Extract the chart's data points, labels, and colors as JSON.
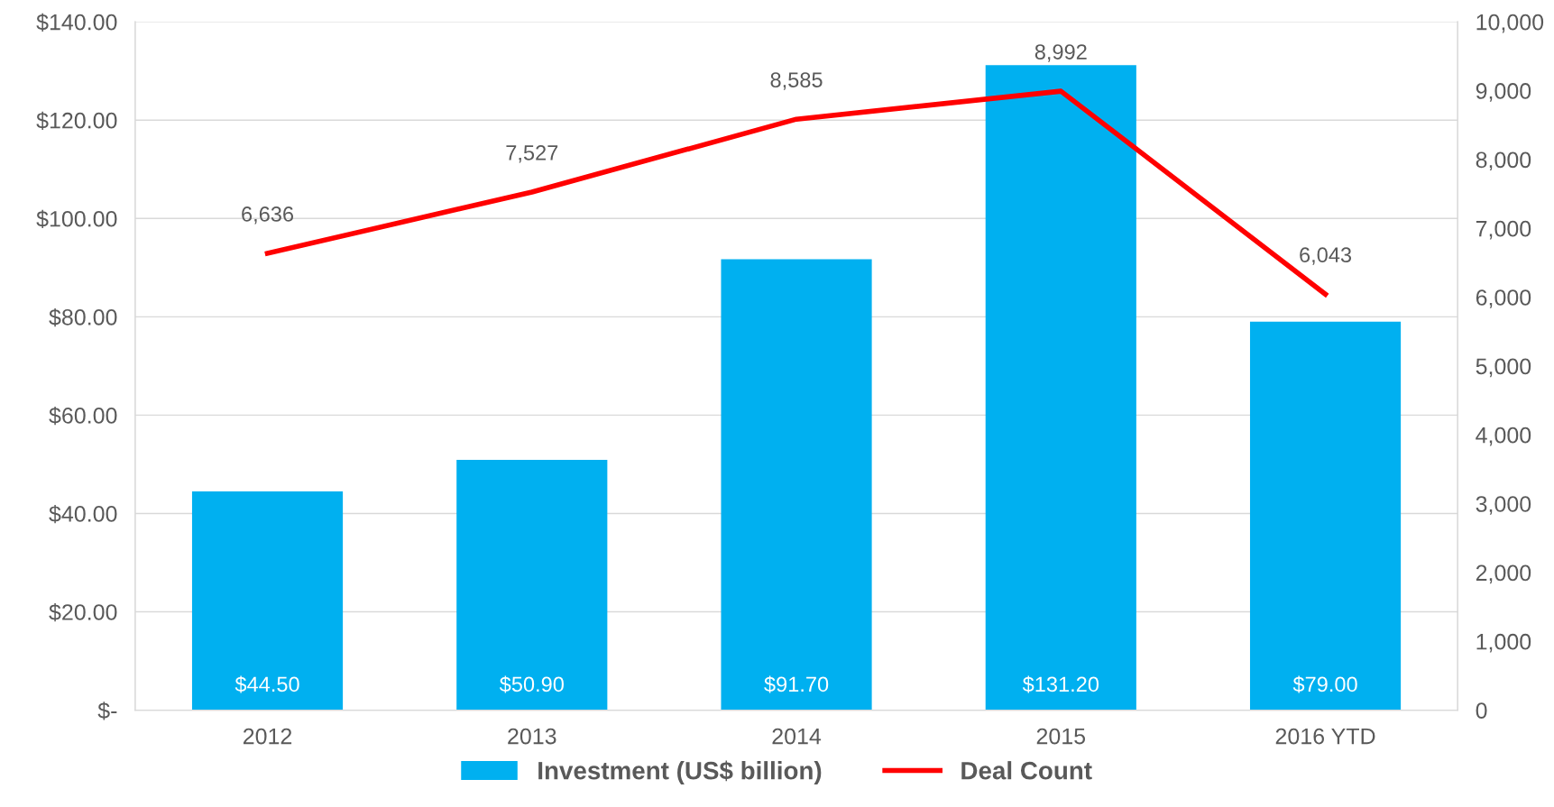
{
  "chart_data": {
    "type": "bar",
    "categories": [
      "2012",
      "2013",
      "2014",
      "2015",
      "2016 YTD"
    ],
    "series": [
      {
        "name": "Investment (US$ billion)",
        "color": "#00b0f0",
        "values": [
          44.5,
          50.9,
          91.7,
          131.2,
          79.0
        ],
        "value_labels": [
          "$44.50",
          "$50.90",
          "$91.70",
          "$131.20",
          "$79.00"
        ]
      },
      {
        "name": "Deal Count",
        "type": "line",
        "axis": "y2",
        "color": "#ff0000",
        "values": [
          6636,
          7527,
          8585,
          8992,
          6043
        ],
        "value_labels": [
          "6,636",
          "7,527",
          "8,585",
          "8,992",
          "6,043"
        ]
      }
    ],
    "ylim": [
      0,
      140
    ],
    "yticks": [
      {
        "value": 0,
        "label": "$-"
      },
      {
        "value": 20,
        "label": "$20.00"
      },
      {
        "value": 40,
        "label": "$40.00"
      },
      {
        "value": 60,
        "label": "$60.00"
      },
      {
        "value": 80,
        "label": "$80.00"
      },
      {
        "value": 100,
        "label": "$100.00"
      },
      {
        "value": 120,
        "label": "$120.00"
      },
      {
        "value": 140,
        "label": "$140.00"
      }
    ],
    "y2lim": [
      0,
      10000
    ],
    "y2ticks": [
      0,
      {
        "value": 1000,
        "label": "1,000"
      },
      {
        "value": 2000,
        "label": "2,000"
      },
      {
        "value": 3000,
        "label": "3,000"
      },
      {
        "value": 4000,
        "label": "4,000"
      },
      {
        "value": 5000,
        "label": "5,000"
      },
      {
        "value": 6000,
        "label": "6,000"
      },
      {
        "value": 7000,
        "label": "7,000"
      },
      {
        "value": 8000,
        "label": "8,000"
      },
      {
        "value": 9000,
        "label": "9,000"
      },
      {
        "value": 10000,
        "label": "10,000"
      }
    ],
    "grid": "y",
    "legend": "bottom",
    "marker": "none",
    "line_style": "solid"
  }
}
